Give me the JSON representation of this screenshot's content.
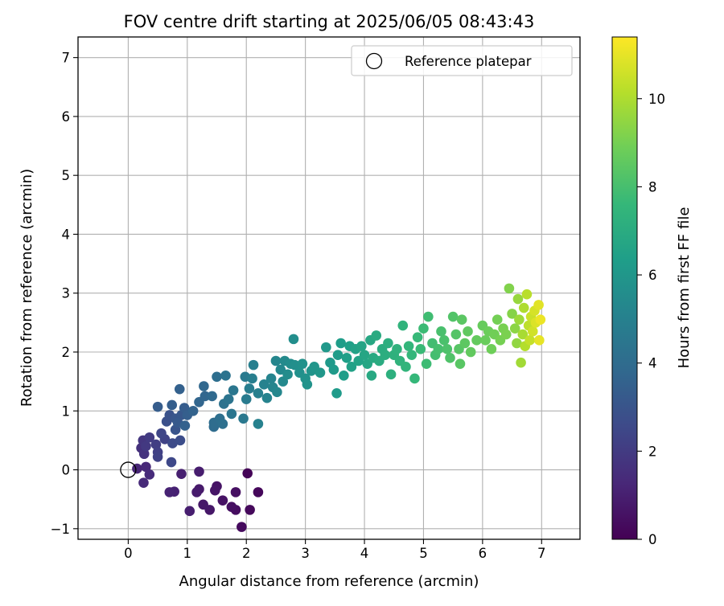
{
  "chart_data": {
    "type": "scatter",
    "title": "FOV centre drift starting at 2025/06/05 08:43:43",
    "xlabel": "Angular distance from reference (arcmin)",
    "ylabel": "Rotation from reference (arcmin)",
    "xlim": [
      -0.85,
      7.65
    ],
    "ylim": [
      -1.18,
      7.35
    ],
    "xticks": [
      0,
      1,
      2,
      3,
      4,
      5,
      6,
      7
    ],
    "yticks": [
      -1,
      0,
      1,
      2,
      3,
      4,
      5,
      6,
      7
    ],
    "grid": true,
    "legend": {
      "placement": "top-right",
      "entries": [
        {
          "label": "Reference platepar",
          "marker": "open-circle"
        }
      ]
    },
    "reference_point": {
      "x": 0,
      "y": 0
    },
    "colorbar": {
      "label": "Hours from first FF file",
      "colormap": "viridis",
      "range": [
        0,
        11.4
      ],
      "ticks": [
        0,
        2,
        4,
        6,
        8,
        10
      ],
      "stops": [
        "#440154",
        "#482878",
        "#3e4989",
        "#31688e",
        "#26828e",
        "#1f9e89",
        "#35b779",
        "#6ece58",
        "#b5de2b",
        "#fde725"
      ]
    },
    "series": [
      {
        "columns": [
          "x",
          "y",
          "hours"
        ],
        "points": [
          [
            2.02,
            -0.06,
            0.1
          ],
          [
            2.2,
            -0.38,
            0.2
          ],
          [
            2.06,
            -0.68,
            0.25
          ],
          [
            1.92,
            -0.97,
            0.3
          ],
          [
            1.82,
            -0.68,
            0.4
          ],
          [
            1.75,
            -0.63,
            0.45
          ],
          [
            1.82,
            -0.38,
            0.5
          ],
          [
            1.6,
            -0.52,
            0.55
          ],
          [
            1.5,
            -0.28,
            0.6
          ],
          [
            1.47,
            -0.35,
            0.65
          ],
          [
            1.38,
            -0.68,
            0.7
          ],
          [
            1.27,
            -0.59,
            0.75
          ],
          [
            1.2,
            -0.33,
            0.8
          ],
          [
            1.16,
            -0.38,
            0.85
          ],
          [
            1.2,
            -0.03,
            0.9
          ],
          [
            1.04,
            -0.7,
            0.95
          ],
          [
            0.9,
            -0.07,
            1.0
          ],
          [
            0.78,
            -0.37,
            1.05
          ],
          [
            0.7,
            -0.38,
            1.1
          ],
          [
            0.15,
            0.02,
            1.2
          ],
          [
            0.3,
            0.05,
            1.3
          ],
          [
            0.26,
            -0.22,
            1.35
          ],
          [
            0.36,
            -0.08,
            1.4
          ],
          [
            0.22,
            0.37,
            1.6
          ],
          [
            0.27,
            0.27,
            1.7
          ],
          [
            0.25,
            0.5,
            1.8
          ],
          [
            0.3,
            0.4,
            1.9
          ],
          [
            0.36,
            0.55,
            2.0
          ],
          [
            0.47,
            0.43,
            2.1
          ],
          [
            0.5,
            0.3,
            2.2
          ],
          [
            0.5,
            0.22,
            2.25
          ],
          [
            0.62,
            0.52,
            2.3
          ],
          [
            0.56,
            0.62,
            2.4
          ],
          [
            0.73,
            0.13,
            2.5
          ],
          [
            0.75,
            0.45,
            2.6
          ],
          [
            0.88,
            0.5,
            2.7
          ],
          [
            0.65,
            0.82,
            2.8
          ],
          [
            0.7,
            0.93,
            2.9
          ],
          [
            0.8,
            0.68,
            3.0
          ],
          [
            0.8,
            0.87,
            3.05
          ],
          [
            0.9,
            0.93,
            3.1
          ],
          [
            0.84,
            0.8,
            3.2
          ],
          [
            0.95,
            1.05,
            3.3
          ],
          [
            0.5,
            1.07,
            3.35
          ],
          [
            0.74,
            1.1,
            3.4
          ],
          [
            1.0,
            0.93,
            3.45
          ],
          [
            0.87,
            1.37,
            3.5
          ],
          [
            0.96,
            0.75,
            3.55
          ],
          [
            1.1,
            1.0,
            3.6
          ],
          [
            1.2,
            1.15,
            3.7
          ],
          [
            1.3,
            1.25,
            3.75
          ],
          [
            1.28,
            1.42,
            3.8
          ],
          [
            1.42,
            1.25,
            3.9
          ],
          [
            1.45,
            0.73,
            4.0
          ],
          [
            1.45,
            0.8,
            4.05
          ],
          [
            1.5,
            1.58,
            4.1
          ],
          [
            1.55,
            0.87,
            4.15
          ],
          [
            1.6,
            0.78,
            4.2
          ],
          [
            1.62,
            1.12,
            4.3
          ],
          [
            1.65,
            1.6,
            4.35
          ],
          [
            1.7,
            1.2,
            4.4
          ],
          [
            1.75,
            0.95,
            4.45
          ],
          [
            1.78,
            1.35,
            4.5
          ],
          [
            1.95,
            0.87,
            4.6
          ],
          [
            1.98,
            1.58,
            4.7
          ],
          [
            2.0,
            1.2,
            4.75
          ],
          [
            2.05,
            1.38,
            4.8
          ],
          [
            2.1,
            1.55,
            4.85
          ],
          [
            2.12,
            1.78,
            4.9
          ],
          [
            2.2,
            1.3,
            4.95
          ],
          [
            2.2,
            0.78,
            5.0
          ],
          [
            2.3,
            1.45,
            5.05
          ],
          [
            2.35,
            1.22,
            5.1
          ],
          [
            2.42,
            1.55,
            5.15
          ],
          [
            2.45,
            1.4,
            5.2
          ],
          [
            2.5,
            1.85,
            5.25
          ],
          [
            2.52,
            1.32,
            5.3
          ],
          [
            2.58,
            1.7,
            5.35
          ],
          [
            2.62,
            1.5,
            5.4
          ],
          [
            2.65,
            1.85,
            5.45
          ],
          [
            2.7,
            1.62,
            5.5
          ],
          [
            2.75,
            1.8,
            5.55
          ],
          [
            2.8,
            2.22,
            5.6
          ],
          [
            2.82,
            1.78,
            5.65
          ],
          [
            2.9,
            1.65,
            5.7
          ],
          [
            2.95,
            1.8,
            5.75
          ],
          [
            3.0,
            1.55,
            5.8
          ],
          [
            3.03,
            1.45,
            5.85
          ],
          [
            3.1,
            1.68,
            5.9
          ],
          [
            3.15,
            1.75,
            5.95
          ],
          [
            3.25,
            1.65,
            6.0
          ],
          [
            3.35,
            2.08,
            6.05
          ],
          [
            3.42,
            1.82,
            6.1
          ],
          [
            3.48,
            1.7,
            6.15
          ],
          [
            3.53,
            1.3,
            6.2
          ],
          [
            3.55,
            1.95,
            6.25
          ],
          [
            3.6,
            2.15,
            6.3
          ],
          [
            3.65,
            1.6,
            6.35
          ],
          [
            3.7,
            1.9,
            6.4
          ],
          [
            3.75,
            2.1,
            6.45
          ],
          [
            3.78,
            1.75,
            6.5
          ],
          [
            3.85,
            2.05,
            6.55
          ],
          [
            3.9,
            1.85,
            6.6
          ],
          [
            3.95,
            2.1,
            6.65
          ],
          [
            4.0,
            1.95,
            6.7
          ],
          [
            4.05,
            1.8,
            6.75
          ],
          [
            4.1,
            2.2,
            6.8
          ],
          [
            4.12,
            1.6,
            6.85
          ],
          [
            4.15,
            1.9,
            6.9
          ],
          [
            4.2,
            2.28,
            6.95
          ],
          [
            4.25,
            1.85,
            7.0
          ],
          [
            4.3,
            2.05,
            7.05
          ],
          [
            4.35,
            1.95,
            7.1
          ],
          [
            4.4,
            2.15,
            7.15
          ],
          [
            4.45,
            1.62,
            7.2
          ],
          [
            4.5,
            1.95,
            7.25
          ],
          [
            4.55,
            2.05,
            7.3
          ],
          [
            4.6,
            1.85,
            7.35
          ],
          [
            4.65,
            2.45,
            7.4
          ],
          [
            4.7,
            1.75,
            7.45
          ],
          [
            4.75,
            2.1,
            7.5
          ],
          [
            4.8,
            1.95,
            7.55
          ],
          [
            4.85,
            1.55,
            7.6
          ],
          [
            4.9,
            2.25,
            7.65
          ],
          [
            4.95,
            2.05,
            7.7
          ],
          [
            5.0,
            2.4,
            7.75
          ],
          [
            5.05,
            1.8,
            7.8
          ],
          [
            5.08,
            2.6,
            7.85
          ],
          [
            5.15,
            2.15,
            7.9
          ],
          [
            5.2,
            1.95,
            7.95
          ],
          [
            5.25,
            2.05,
            8.0
          ],
          [
            5.3,
            2.35,
            8.05
          ],
          [
            5.35,
            2.2,
            8.1
          ],
          [
            5.4,
            2.05,
            8.15
          ],
          [
            5.45,
            1.9,
            8.2
          ],
          [
            5.5,
            2.6,
            8.25
          ],
          [
            5.55,
            2.3,
            8.3
          ],
          [
            5.6,
            2.05,
            8.35
          ],
          [
            5.62,
            1.8,
            8.4
          ],
          [
            5.65,
            2.55,
            8.45
          ],
          [
            5.7,
            2.15,
            8.5
          ],
          [
            5.75,
            2.35,
            8.55
          ],
          [
            5.8,
            2.0,
            8.6
          ],
          [
            5.9,
            2.2,
            8.65
          ],
          [
            6.0,
            2.45,
            8.7
          ],
          [
            6.05,
            2.2,
            8.75
          ],
          [
            6.1,
            2.35,
            8.8
          ],
          [
            6.15,
            2.05,
            8.85
          ],
          [
            6.2,
            2.3,
            8.9
          ],
          [
            6.25,
            2.55,
            8.95
          ],
          [
            6.3,
            2.2,
            9.0
          ],
          [
            6.35,
            2.4,
            9.05
          ],
          [
            6.4,
            2.3,
            9.1
          ],
          [
            6.45,
            3.08,
            9.2
          ],
          [
            6.5,
            2.65,
            9.3
          ],
          [
            6.55,
            2.4,
            9.4
          ],
          [
            6.58,
            2.15,
            9.5
          ],
          [
            6.6,
            2.9,
            9.6
          ],
          [
            6.62,
            2.55,
            9.7
          ],
          [
            6.65,
            1.82,
            9.8
          ],
          [
            6.68,
            2.3,
            9.9
          ],
          [
            6.7,
            2.75,
            10.0
          ],
          [
            6.72,
            2.1,
            10.1
          ],
          [
            6.75,
            2.98,
            10.2
          ],
          [
            6.78,
            2.45,
            10.3
          ],
          [
            6.8,
            2.2,
            10.4
          ],
          [
            6.82,
            2.6,
            10.5
          ],
          [
            6.85,
            2.35,
            10.6
          ],
          [
            6.88,
            2.7,
            10.7
          ],
          [
            6.9,
            2.5,
            10.8
          ],
          [
            6.95,
            2.8,
            10.9
          ],
          [
            6.96,
            2.2,
            11.0
          ],
          [
            6.98,
            2.55,
            11.1
          ]
        ]
      }
    ]
  }
}
